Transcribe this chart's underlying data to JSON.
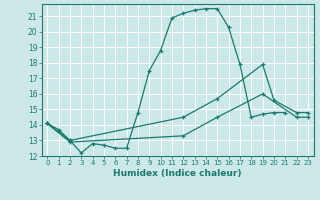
{
  "xlabel": "Humidex (Indice chaleur)",
  "bg_color": "#cde8e8",
  "grid_color": "#ffffff",
  "line_color": "#1a7a6e",
  "xlim": [
    -0.5,
    23.5
  ],
  "ylim": [
    12,
    21.8
  ],
  "yticks": [
    12,
    13,
    14,
    15,
    16,
    17,
    18,
    19,
    20,
    21
  ],
  "xticks": [
    0,
    1,
    2,
    3,
    4,
    5,
    6,
    7,
    8,
    9,
    10,
    11,
    12,
    13,
    14,
    15,
    16,
    17,
    18,
    19,
    20,
    21,
    22,
    23
  ],
  "s1x": [
    0,
    1,
    2,
    3,
    4,
    5,
    6,
    7,
    8,
    9,
    10,
    11,
    12,
    13,
    14,
    15,
    16,
    17,
    18,
    19,
    20,
    21
  ],
  "s1y": [
    14.1,
    13.7,
    13.0,
    12.2,
    12.8,
    12.7,
    12.5,
    12.5,
    14.8,
    17.5,
    18.8,
    20.9,
    21.2,
    21.4,
    21.5,
    21.5,
    20.3,
    17.9,
    14.5,
    14.7,
    14.8,
    14.8
  ],
  "s2x": [
    0,
    2,
    12,
    15,
    19,
    20,
    22,
    23
  ],
  "s2y": [
    14.1,
    13.0,
    14.5,
    15.7,
    17.9,
    15.6,
    14.8,
    14.8
  ],
  "s3x": [
    0,
    2,
    12,
    15,
    19,
    22,
    23
  ],
  "s3y": [
    14.1,
    12.9,
    13.3,
    14.5,
    16.0,
    14.5,
    14.5
  ]
}
